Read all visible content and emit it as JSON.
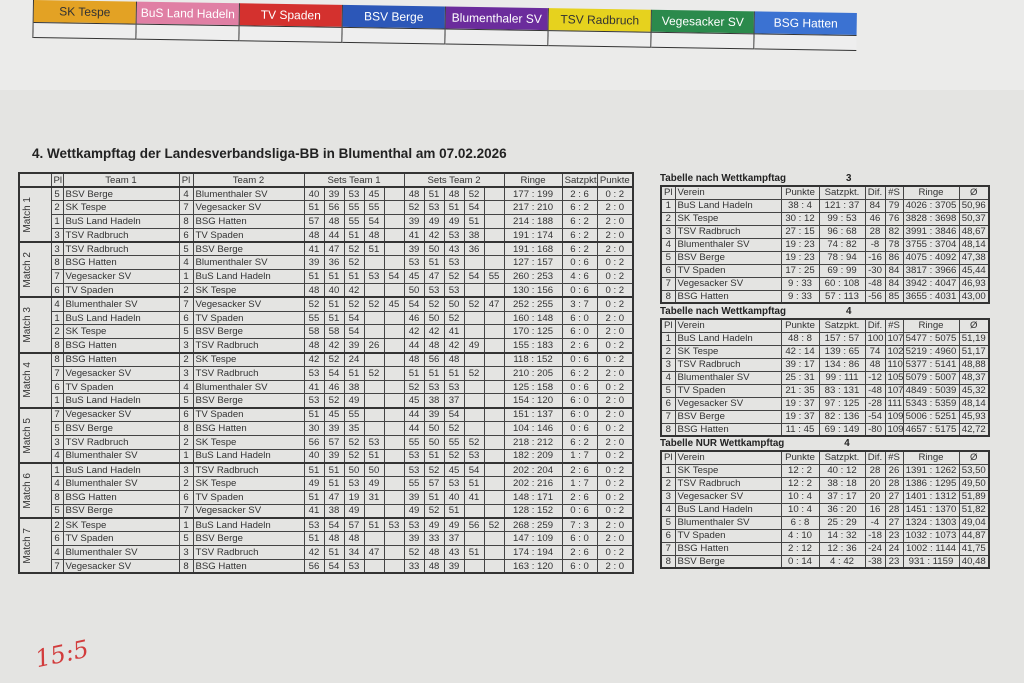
{
  "top_strip": {
    "teams": [
      {
        "name": "SK Tespe",
        "color": "#e3a224"
      },
      {
        "name": "BuS Land Hadeln",
        "color": "#e07fa4"
      },
      {
        "name": "TV Spaden",
        "color": "#d4312e"
      },
      {
        "name": "BSV Berge",
        "color": "#2c57b8"
      },
      {
        "name": "Blumenthaler SV",
        "color": "#6b2c9c"
      },
      {
        "name": "TSV Radbruch",
        "color": "#e6d21e"
      },
      {
        "name": "Vegesacker SV",
        "color": "#2b8a4c"
      },
      {
        "name": "BSG Hatten",
        "color": "#3b72d2"
      }
    ]
  },
  "title": "4. Wettkampftag der Landesverbandsliga-BB in Blumenthal am 07.02.2026",
  "matches_table": {
    "headers": {
      "pl": "Pl",
      "team1": "Team 1",
      "team2": "Team 2",
      "sets1": "Sets Team 1",
      "sets2": "Sets Team 2",
      "ringe": "Ringe",
      "satzpkt": "Satzpkt",
      "punkte": "Punkte"
    },
    "matches": [
      {
        "label": "Match 1",
        "games": [
          {
            "pl1": "5",
            "team1": "BSV Berge",
            "pl2": "4",
            "team2": "Blumenthaler SV",
            "sets1": [
              "40",
              "39",
              "53",
              "45"
            ],
            "sets2": [
              "48",
              "51",
              "48",
              "52"
            ],
            "ringe": "177 : 199",
            "satzpkt": "2 : 6",
            "punkte": "0 : 2"
          },
          {
            "pl1": "2",
            "team1": "SK Tespe",
            "pl2": "7",
            "team2": "Vegesacker SV",
            "sets1": [
              "51",
              "56",
              "55",
              "55"
            ],
            "sets2": [
              "52",
              "53",
              "51",
              "54"
            ],
            "ringe": "217 : 210",
            "satzpkt": "6 : 2",
            "punkte": "2 : 0"
          },
          {
            "pl1": "1",
            "team1": "BuS Land Hadeln",
            "pl2": "8",
            "team2": "BSG Hatten",
            "sets1": [
              "57",
              "48",
              "55",
              "54"
            ],
            "sets2": [
              "39",
              "49",
              "49",
              "51"
            ],
            "ringe": "214 : 188",
            "satzpkt": "6 : 2",
            "punkte": "2 : 0"
          },
          {
            "pl1": "3",
            "team1": "TSV Radbruch",
            "pl2": "6",
            "team2": "TV Spaden",
            "sets1": [
              "48",
              "44",
              "51",
              "48"
            ],
            "sets2": [
              "41",
              "42",
              "53",
              "38"
            ],
            "ringe": "191 : 174",
            "satzpkt": "6 : 2",
            "punkte": "2 : 0"
          }
        ]
      },
      {
        "label": "Match 2",
        "games": [
          {
            "pl1": "3",
            "team1": "TSV Radbruch",
            "pl2": "5",
            "team2": "BSV Berge",
            "sets1": [
              "41",
              "47",
              "52",
              "51"
            ],
            "sets2": [
              "39",
              "50",
              "43",
              "36"
            ],
            "ringe": "191 : 168",
            "satzpkt": "6 : 2",
            "punkte": "2 : 0"
          },
          {
            "pl1": "8",
            "team1": "BSG Hatten",
            "pl2": "4",
            "team2": "Blumenthaler SV",
            "sets1": [
              "39",
              "36",
              "52"
            ],
            "sets2": [
              "53",
              "51",
              "53"
            ],
            "ringe": "127 : 157",
            "satzpkt": "0 : 6",
            "punkte": "0 : 2"
          },
          {
            "pl1": "7",
            "team1": "Vegesacker SV",
            "pl2": "1",
            "team2": "BuS Land Hadeln",
            "sets1": [
              "51",
              "51",
              "51",
              "53",
              "54"
            ],
            "sets2": [
              "45",
              "47",
              "52",
              "54",
              "55"
            ],
            "ringe": "260 : 253",
            "satzpkt": "4 : 6",
            "punkte": "0 : 2"
          },
          {
            "pl1": "6",
            "team1": "TV Spaden",
            "pl2": "2",
            "team2": "SK Tespe",
            "sets1": [
              "48",
              "40",
              "42"
            ],
            "sets2": [
              "50",
              "53",
              "53"
            ],
            "ringe": "130 : 156",
            "satzpkt": "0 : 6",
            "punkte": "0 : 2"
          }
        ]
      },
      {
        "label": "Match 3",
        "games": [
          {
            "pl1": "4",
            "team1": "Blumenthaler SV",
            "pl2": "7",
            "team2": "Vegesacker SV",
            "sets1": [
              "52",
              "51",
              "52",
              "52",
              "45"
            ],
            "sets2": [
              "54",
              "52",
              "50",
              "52",
              "47"
            ],
            "ringe": "252 : 255",
            "satzpkt": "3 : 7",
            "punkte": "0 : 2"
          },
          {
            "pl1": "1",
            "team1": "BuS Land Hadeln",
            "pl2": "6",
            "team2": "TV Spaden",
            "sets1": [
              "55",
              "51",
              "54"
            ],
            "sets2": [
              "46",
              "50",
              "52"
            ],
            "ringe": "160 : 148",
            "satzpkt": "6 : 0",
            "punkte": "2 : 0"
          },
          {
            "pl1": "2",
            "team1": "SK Tespe",
            "pl2": "5",
            "team2": "BSV Berge",
            "sets1": [
              "58",
              "58",
              "54"
            ],
            "sets2": [
              "42",
              "42",
              "41"
            ],
            "ringe": "170 : 125",
            "satzpkt": "6 : 0",
            "punkte": "2 : 0"
          },
          {
            "pl1": "8",
            "team1": "BSG Hatten",
            "pl2": "3",
            "team2": "TSV Radbruch",
            "sets1": [
              "48",
              "42",
              "39",
              "26"
            ],
            "sets2": [
              "44",
              "48",
              "42",
              "49"
            ],
            "ringe": "155 : 183",
            "satzpkt": "2 : 6",
            "punkte": "0 : 2"
          }
        ]
      },
      {
        "label": "Match 4",
        "games": [
          {
            "pl1": "8",
            "team1": "BSG Hatten",
            "pl2": "2",
            "team2": "SK Tespe",
            "sets1": [
              "42",
              "52",
              "24"
            ],
            "sets2": [
              "48",
              "56",
              "48"
            ],
            "ringe": "118 : 152",
            "satzpkt": "0 : 6",
            "punkte": "0 : 2"
          },
          {
            "pl1": "7",
            "team1": "Vegesacker SV",
            "pl2": "3",
            "team2": "TSV Radbruch",
            "sets1": [
              "53",
              "54",
              "51",
              "52"
            ],
            "sets2": [
              "51",
              "51",
              "51",
              "52"
            ],
            "ringe": "210 : 205",
            "satzpkt": "6 : 2",
            "punkte": "2 : 0"
          },
          {
            "pl1": "6",
            "team1": "TV Spaden",
            "pl2": "4",
            "team2": "Blumenthaler SV",
            "sets1": [
              "41",
              "46",
              "38"
            ],
            "sets2": [
              "52",
              "53",
              "53"
            ],
            "ringe": "125 : 158",
            "satzpkt": "0 : 6",
            "punkte": "0 : 2"
          },
          {
            "pl1": "1",
            "team1": "BuS Land Hadeln",
            "pl2": "5",
            "team2": "BSV Berge",
            "sets1": [
              "53",
              "52",
              "49"
            ],
            "sets2": [
              "45",
              "38",
              "37"
            ],
            "ringe": "154 : 120",
            "satzpkt": "6 : 0",
            "punkte": "2 : 0"
          }
        ]
      },
      {
        "label": "Match 5",
        "games": [
          {
            "pl1": "7",
            "team1": "Vegesacker SV",
            "pl2": "6",
            "team2": "TV Spaden",
            "sets1": [
              "51",
              "45",
              "55"
            ],
            "sets2": [
              "44",
              "39",
              "54"
            ],
            "ringe": "151 : 137",
            "satzpkt": "6 : 0",
            "punkte": "2 : 0"
          },
          {
            "pl1": "5",
            "team1": "BSV Berge",
            "pl2": "8",
            "team2": "BSG Hatten",
            "sets1": [
              "30",
              "39",
              "35"
            ],
            "sets2": [
              "44",
              "50",
              "52"
            ],
            "ringe": "104 : 146",
            "satzpkt": "0 : 6",
            "punkte": "0 : 2"
          },
          {
            "pl1": "3",
            "team1": "TSV Radbruch",
            "pl2": "2",
            "team2": "SK Tespe",
            "sets1": [
              "56",
              "57",
              "52",
              "53"
            ],
            "sets2": [
              "55",
              "50",
              "55",
              "52"
            ],
            "ringe": "218 : 212",
            "satzpkt": "6 : 2",
            "punkte": "2 : 0"
          },
          {
            "pl1": "4",
            "team1": "Blumenthaler SV",
            "pl2": "1",
            "team2": "BuS Land Hadeln",
            "sets1": [
              "40",
              "39",
              "52",
              "51"
            ],
            "sets2": [
              "53",
              "51",
              "52",
              "53"
            ],
            "ringe": "182 : 209",
            "satzpkt": "1 : 7",
            "punkte": "0 : 2"
          }
        ]
      },
      {
        "label": "Match 6",
        "games": [
          {
            "pl1": "1",
            "team1": "BuS Land Hadeln",
            "pl2": "3",
            "team2": "TSV Radbruch",
            "sets1": [
              "51",
              "51",
              "50",
              "50"
            ],
            "sets2": [
              "53",
              "52",
              "45",
              "54"
            ],
            "ringe": "202 : 204",
            "satzpkt": "2 : 6",
            "punkte": "0 : 2"
          },
          {
            "pl1": "4",
            "team1": "Blumenthaler SV",
            "pl2": "2",
            "team2": "SK Tespe",
            "sets1": [
              "49",
              "51",
              "53",
              "49"
            ],
            "sets2": [
              "55",
              "57",
              "53",
              "51"
            ],
            "ringe": "202 : 216",
            "satzpkt": "1 : 7",
            "punkte": "0 : 2"
          },
          {
            "pl1": "8",
            "team1": "BSG Hatten",
            "pl2": "6",
            "team2": "TV Spaden",
            "sets1": [
              "51",
              "47",
              "19",
              "31"
            ],
            "sets2": [
              "39",
              "51",
              "40",
              "41"
            ],
            "ringe": "148 : 171",
            "satzpkt": "2 : 6",
            "punkte": "0 : 2"
          },
          {
            "pl1": "5",
            "team1": "BSV Berge",
            "pl2": "7",
            "team2": "Vegesacker SV",
            "sets1": [
              "41",
              "38",
              "49"
            ],
            "sets2": [
              "49",
              "52",
              "51"
            ],
            "ringe": "128 : 152",
            "satzpkt": "0 : 6",
            "punkte": "0 : 2"
          }
        ]
      },
      {
        "label": "Match 7",
        "games": [
          {
            "pl1": "2",
            "team1": "SK Tespe",
            "pl2": "1",
            "team2": "BuS Land Hadeln",
            "sets1": [
              "53",
              "54",
              "57",
              "51",
              "53"
            ],
            "sets2": [
              "53",
              "49",
              "49",
              "56",
              "52"
            ],
            "ringe": "268 : 259",
            "satzpkt": "7 : 3",
            "punkte": "2 : 0"
          },
          {
            "pl1": "6",
            "team1": "TV Spaden",
            "pl2": "5",
            "team2": "BSV Berge",
            "sets1": [
              "51",
              "48",
              "48"
            ],
            "sets2": [
              "39",
              "33",
              "37"
            ],
            "ringe": "147 : 109",
            "satzpkt": "6 : 0",
            "punkte": "2 : 0"
          },
          {
            "pl1": "4",
            "team1": "Blumenthaler SV",
            "pl2": "3",
            "team2": "TSV Radbruch",
            "sets1": [
              "42",
              "51",
              "34",
              "47"
            ],
            "sets2": [
              "52",
              "48",
              "43",
              "51"
            ],
            "ringe": "174 : 194",
            "satzpkt": "2 : 6",
            "punkte": "0 : 2"
          },
          {
            "pl1": "7",
            "team1": "Vegesacker SV",
            "pl2": "8",
            "team2": "BSG Hatten",
            "sets1": [
              "56",
              "54",
              "53"
            ],
            "sets2": [
              "33",
              "48",
              "39"
            ],
            "ringe": "163 : 120",
            "satzpkt": "6 : 0",
            "punkte": "2 : 0"
          }
        ]
      }
    ]
  },
  "standings": [
    {
      "title": "Tabelle nach Wettkampftag",
      "day": "3",
      "headers": [
        "Pl",
        "Verein",
        "Punkte",
        "Satzpkt.",
        "Dif.",
        "#S",
        "Ringe",
        "Ø"
      ],
      "rows": [
        [
          "1",
          "BuS Land Hadeln",
          "38 : 4",
          "121 : 37",
          "84",
          "79",
          "4026 : 3705",
          "50,96"
        ],
        [
          "2",
          "SK Tespe",
          "30 : 12",
          "99 : 53",
          "46",
          "76",
          "3828 : 3698",
          "50,37"
        ],
        [
          "3",
          "TSV Radbruch",
          "27 : 15",
          "96 : 68",
          "28",
          "82",
          "3991 : 3846",
          "48,67"
        ],
        [
          "4",
          "Blumenthaler SV",
          "19 : 23",
          "74 : 82",
          "-8",
          "78",
          "3755 : 3704",
          "48,14"
        ],
        [
          "5",
          "BSV Berge",
          "19 : 23",
          "78 : 94",
          "-16",
          "86",
          "4075 : 4092",
          "47,38"
        ],
        [
          "6",
          "TV Spaden",
          "17 : 25",
          "69 : 99",
          "-30",
          "84",
          "3817 : 3966",
          "45,44"
        ],
        [
          "7",
          "Vegesacker SV",
          "9 : 33",
          "60 : 108",
          "-48",
          "84",
          "3942 : 4047",
          "46,93"
        ],
        [
          "8",
          "BSG Hatten",
          "9 : 33",
          "57 : 113",
          "-56",
          "85",
          "3655 : 4031",
          "43,00"
        ]
      ]
    },
    {
      "title": "Tabelle nach Wettkampftag",
      "day": "4",
      "headers": [
        "Pl",
        "Verein",
        "Punkte",
        "Satzpkt.",
        "Dif.",
        "#S",
        "Ringe",
        "Ø"
      ],
      "rows": [
        [
          "1",
          "BuS Land Hadeln",
          "48 : 8",
          "157 : 57",
          "100",
          "107",
          "5477 : 5075",
          "51,19"
        ],
        [
          "2",
          "SK Tespe",
          "42 : 14",
          "139 : 65",
          "74",
          "102",
          "5219 : 4960",
          "51,17"
        ],
        [
          "3",
          "TSV Radbruch",
          "39 : 17",
          "134 : 86",
          "48",
          "110",
          "5377 : 5141",
          "48,88"
        ],
        [
          "4",
          "Blumenthaler SV",
          "25 : 31",
          "99 : 111",
          "-12",
          "105",
          "5079 : 5007",
          "48,37"
        ],
        [
          "5",
          "TV Spaden",
          "21 : 35",
          "83 : 131",
          "-48",
          "107",
          "4849 : 5039",
          "45,32"
        ],
        [
          "6",
          "Vegesacker SV",
          "19 : 37",
          "97 : 125",
          "-28",
          "111",
          "5343 : 5359",
          "48,14"
        ],
        [
          "7",
          "BSV Berge",
          "19 : 37",
          "82 : 136",
          "-54",
          "109",
          "5006 : 5251",
          "45,93"
        ],
        [
          "8",
          "BSG Hatten",
          "11 : 45",
          "69 : 149",
          "-80",
          "109",
          "4657 : 5175",
          "42,72"
        ]
      ]
    },
    {
      "title": "Tabelle NUR Wettkampftag",
      "day": "4",
      "headers": [
        "Pl",
        "Verein",
        "Punkte",
        "Satzpkt.",
        "Dif.",
        "#S",
        "Ringe",
        "Ø"
      ],
      "rows": [
        [
          "1",
          "SK Tespe",
          "12 : 2",
          "40 : 12",
          "28",
          "26",
          "1391 : 1262",
          "53,50"
        ],
        [
          "2",
          "TSV Radbruch",
          "12 : 2",
          "38 : 18",
          "20",
          "28",
          "1386 : 1295",
          "49,50"
        ],
        [
          "3",
          "Vegesacker SV",
          "10 : 4",
          "37 : 17",
          "20",
          "27",
          "1401 : 1312",
          "51,89"
        ],
        [
          "4",
          "BuS Land Hadeln",
          "10 : 4",
          "36 : 20",
          "16",
          "28",
          "1451 : 1370",
          "51,82"
        ],
        [
          "5",
          "Blumenthaler SV",
          "6 : 8",
          "25 : 29",
          "-4",
          "27",
          "1324 : 1303",
          "49,04"
        ],
        [
          "6",
          "TV Spaden",
          "4 : 10",
          "14 : 32",
          "-18",
          "23",
          "1032 : 1073",
          "44,87"
        ],
        [
          "7",
          "BSG Hatten",
          "2 : 12",
          "12 : 36",
          "-24",
          "24",
          "1002 : 1144",
          "41,75"
        ],
        [
          "8",
          "BSV Berge",
          "0 : 14",
          "4 : 42",
          "-38",
          "23",
          "931 : 1159",
          "40,48"
        ]
      ]
    }
  ],
  "handwriting": "15:5"
}
